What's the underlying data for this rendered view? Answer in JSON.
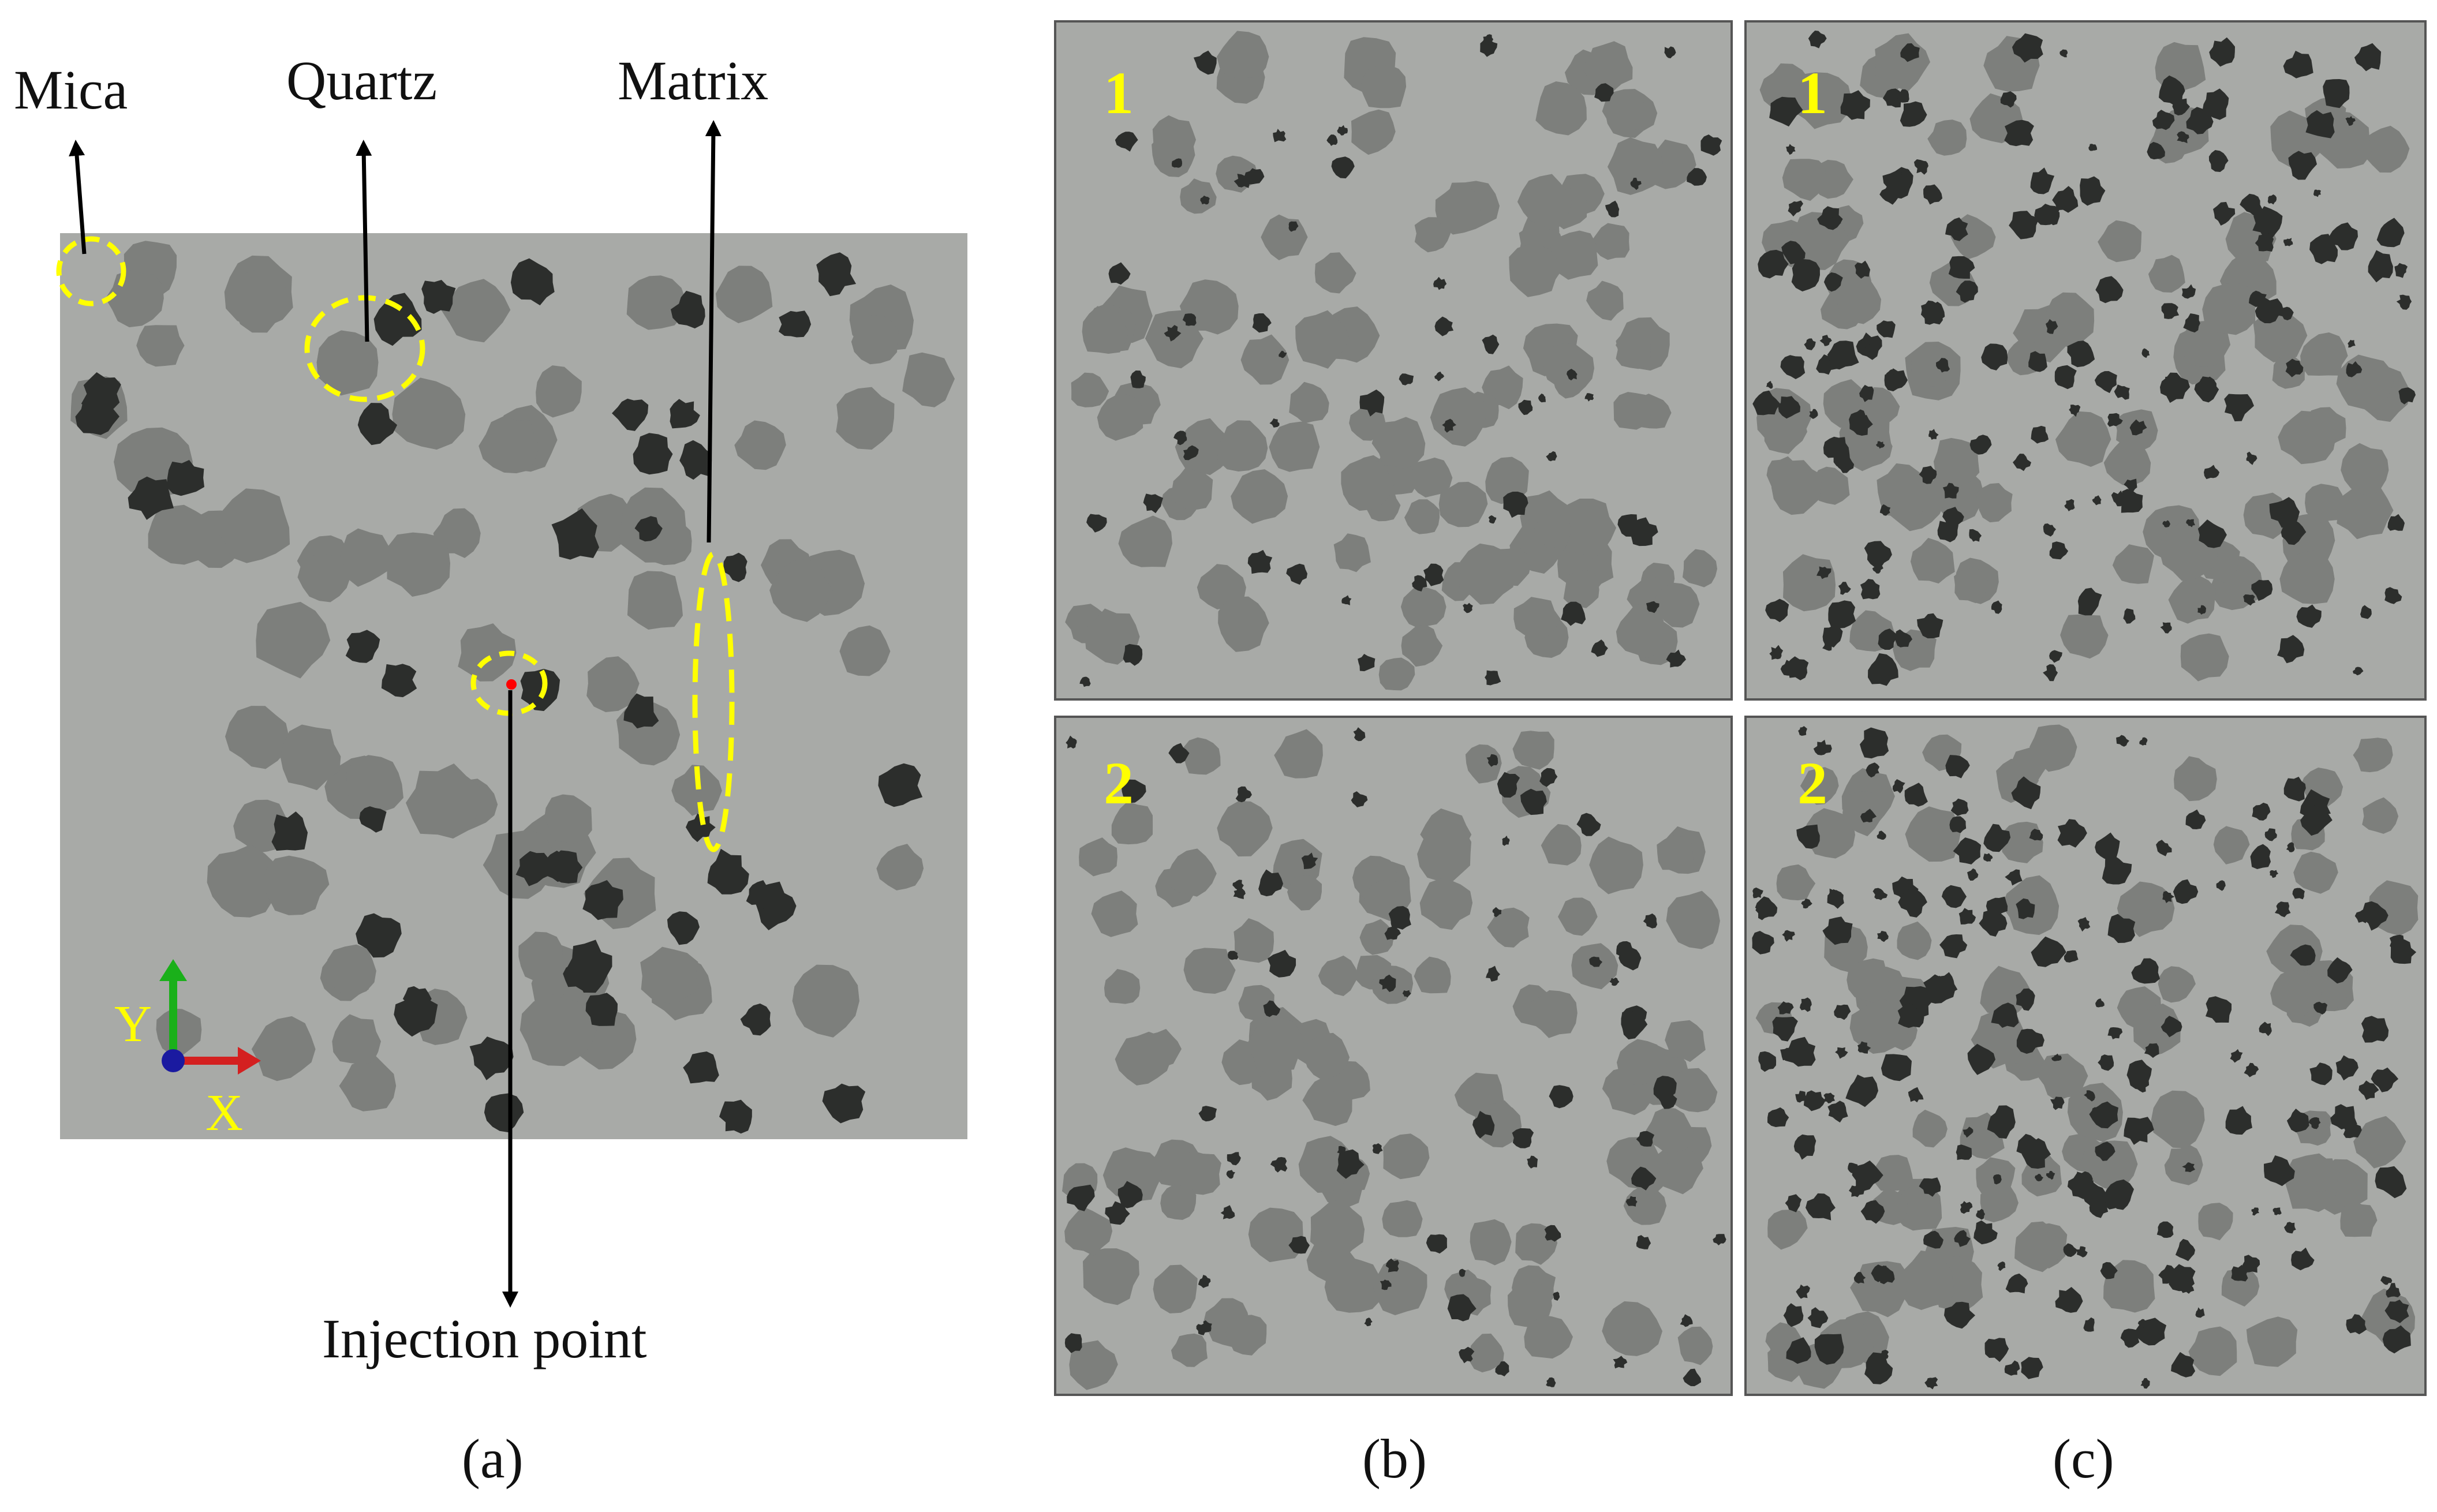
{
  "labels": {
    "mica": "Mica",
    "quartz": "Quartz",
    "matrix": "Matrix",
    "injection_point": "Injection point"
  },
  "axes": {
    "x": "X",
    "y": "Y"
  },
  "panels": {
    "b_top_tag": "1",
    "b_bottom_tag": "2",
    "c_top_tag": "1",
    "c_bottom_tag": "2"
  },
  "captions": {
    "a": "(a)",
    "b": "(b)",
    "c": "(c)"
  },
  "colors": {
    "matrix": "#a8aaa7",
    "quartz": "#7d7f7c",
    "mica": "#2c2e2c",
    "highlight": "#ffff00",
    "injection": "#ff0000",
    "axis_x": "#d42020",
    "axis_y": "#1ab01a",
    "axis_z": "#1a1aa0",
    "frame": "#555555",
    "arrow": "#000000"
  }
}
